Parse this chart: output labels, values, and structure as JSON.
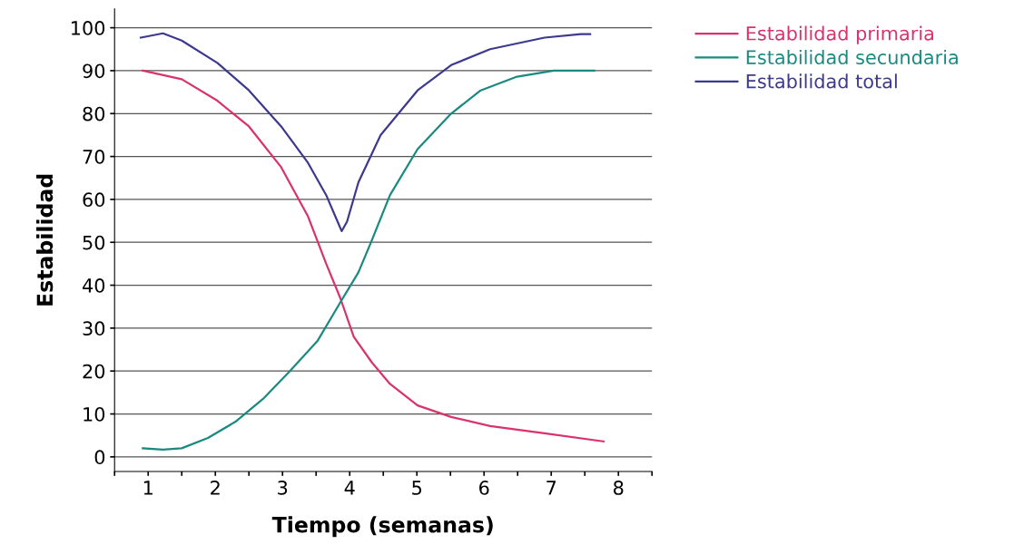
{
  "chart_data": {
    "type": "line",
    "xlabel": "Tiempo (semanas)",
    "ylabel": "Estabilidad",
    "xlim": [
      0.5,
      8.5
    ],
    "xticks": [
      {
        "value": 0.5,
        "label": null
      },
      1,
      {
        "value": 1.5,
        "label": null
      },
      2,
      {
        "value": 2.5,
        "label": null
      },
      3,
      {
        "value": 3.5,
        "label": null
      },
      4,
      {
        "value": 4.5,
        "label": null
      },
      5,
      {
        "value": 5.5,
        "label": null
      },
      6,
      {
        "value": 6.5,
        "label": null
      },
      7,
      {
        "value": 7.5,
        "label": null
      },
      8,
      {
        "value": 8.5,
        "label": null
      }
    ],
    "ylim": [
      -3.4,
      104.4
    ],
    "yticks": [
      0,
      10,
      20,
      30,
      40,
      50,
      60,
      70,
      80,
      90,
      100
    ],
    "grid": "y",
    "legend": "right",
    "line_style": "solid",
    "series": [
      {
        "name": "Estabilidad primaria",
        "color": "#d8336e",
        "x": [
          0.92,
          1.5,
          2.03,
          2.5,
          2.98,
          3.38,
          3.65,
          3.86,
          4.06,
          4.33,
          4.6,
          5.01,
          5.51,
          6.09,
          6.9,
          7.78
        ],
        "values": [
          90,
          88,
          83,
          77,
          67.5,
          56,
          45,
          37,
          28,
          22,
          17,
          12,
          9.3,
          7.2,
          5.5,
          3.6
        ]
      },
      {
        "name": "Estabilidad secundaria",
        "color": "#1a8a80",
        "x": [
          0.92,
          1.22,
          1.5,
          1.89,
          2.3,
          2.71,
          3.11,
          3.52,
          3.86,
          4.13,
          4.33,
          4.6,
          5.01,
          5.51,
          5.95,
          6.49,
          7.04,
          7.64
        ],
        "values": [
          2,
          1.7,
          2,
          4.4,
          8.2,
          13.5,
          20,
          27,
          36,
          43,
          50.5,
          61,
          71.7,
          80,
          85.4,
          88.6,
          90,
          90
        ]
      },
      {
        "name": "Estabilidad total",
        "color": "#3d3a8e",
        "x": [
          0.89,
          1.22,
          1.5,
          2.03,
          2.5,
          2.98,
          3.38,
          3.65,
          3.82,
          3.88,
          3.96,
          4.13,
          4.46,
          5.01,
          5.51,
          6.09,
          6.9,
          7.44,
          7.58
        ],
        "values": [
          97.7,
          98.7,
          97,
          91.8,
          85.4,
          77,
          68.5,
          61,
          54.8,
          52.6,
          54.8,
          64,
          75,
          85.4,
          91.3,
          95,
          97.7,
          98.5,
          98.5
        ]
      }
    ]
  }
}
